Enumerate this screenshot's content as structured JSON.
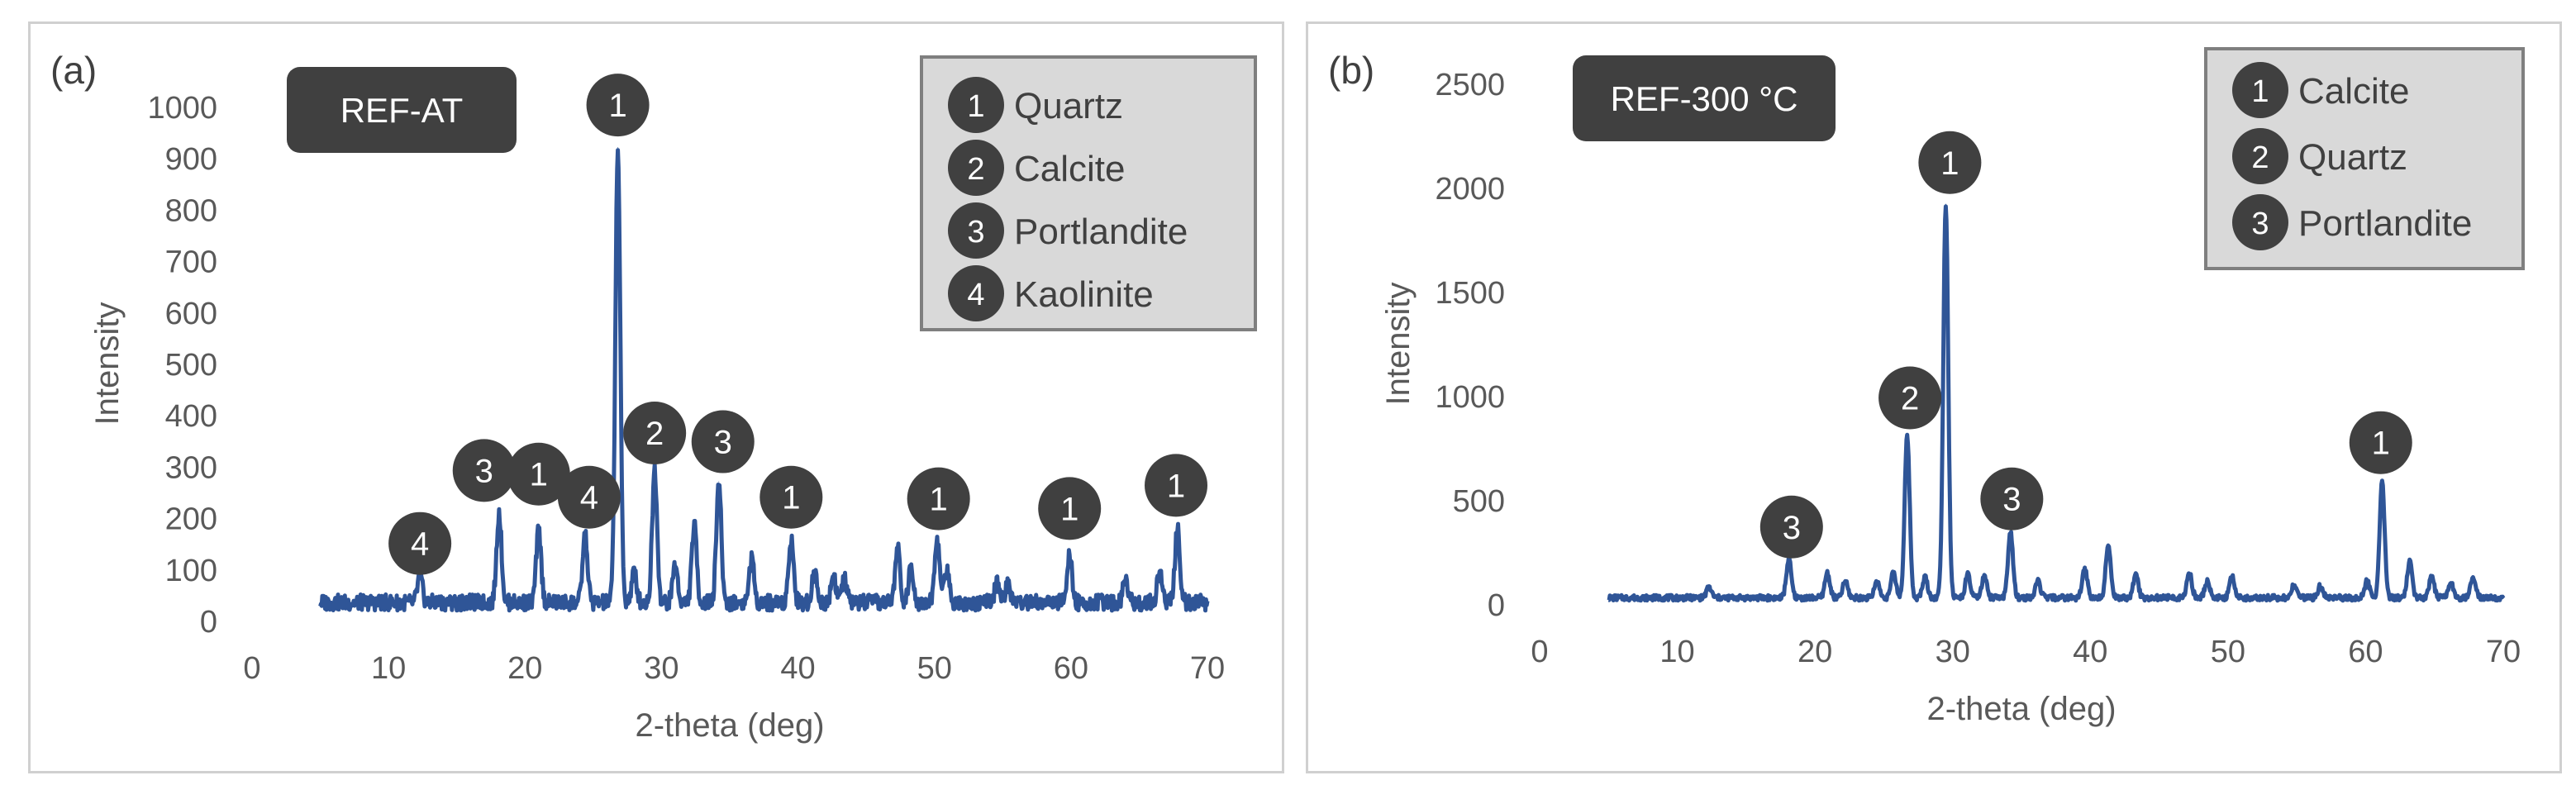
{
  "chart_data": [
    {
      "type": "line",
      "panel_label": "(a)",
      "sample_label": "REF-AT",
      "xlabel": "2-theta (deg)",
      "ylabel": "Intensity",
      "xlim": [
        0,
        70
      ],
      "ylim": [
        0,
        1000
      ],
      "xticks": [
        0,
        10,
        20,
        30,
        40,
        50,
        60,
        70
      ],
      "yticks": [
        0,
        100,
        200,
        300,
        400,
        500,
        600,
        700,
        800,
        900,
        1000
      ],
      "grid": false,
      "legend_position": "top-right",
      "line_color": "#2f5597",
      "baseline": 35,
      "x_start": 5,
      "x_end": 70,
      "peaks": [
        {
          "x": 12.3,
          "y": 85
        },
        {
          "x": 18.1,
          "y": 210
        },
        {
          "x": 21.0,
          "y": 175
        },
        {
          "x": 24.4,
          "y": 165
        },
        {
          "x": 26.8,
          "y": 920
        },
        {
          "x": 28.0,
          "y": 95
        },
        {
          "x": 29.5,
          "y": 295
        },
        {
          "x": 31.0,
          "y": 110
        },
        {
          "x": 32.4,
          "y": 185
        },
        {
          "x": 34.2,
          "y": 270
        },
        {
          "x": 36.6,
          "y": 120
        },
        {
          "x": 39.5,
          "y": 160
        },
        {
          "x": 41.2,
          "y": 95
        },
        {
          "x": 42.6,
          "y": 90
        },
        {
          "x": 43.4,
          "y": 80
        },
        {
          "x": 47.3,
          "y": 140
        },
        {
          "x": 48.3,
          "y": 105
        },
        {
          "x": 50.2,
          "y": 155
        },
        {
          "x": 50.9,
          "y": 100
        },
        {
          "x": 54.6,
          "y": 75
        },
        {
          "x": 55.4,
          "y": 70
        },
        {
          "x": 59.9,
          "y": 125
        },
        {
          "x": 64.0,
          "y": 85
        },
        {
          "x": 66.5,
          "y": 100
        },
        {
          "x": 67.8,
          "y": 180
        }
      ],
      "peak_labels": [
        {
          "num": "4",
          "x": 12.3,
          "y": 150
        },
        {
          "num": "3",
          "x": 17.0,
          "y": 292
        },
        {
          "num": "1",
          "x": 21.0,
          "y": 285
        },
        {
          "num": "4",
          "x": 24.7,
          "y": 240
        },
        {
          "num": "1",
          "x": 26.8,
          "y": 1003
        },
        {
          "num": "2",
          "x": 29.5,
          "y": 365
        },
        {
          "num": "3",
          "x": 34.5,
          "y": 348
        },
        {
          "num": "1",
          "x": 39.5,
          "y": 240
        },
        {
          "num": "1",
          "x": 50.3,
          "y": 237
        },
        {
          "num": "1",
          "x": 59.9,
          "y": 218
        },
        {
          "num": "1",
          "x": 67.7,
          "y": 263
        }
      ],
      "legend": [
        {
          "num": "1",
          "label": "Quartz"
        },
        {
          "num": "2",
          "label": "Calcite"
        },
        {
          "num": "3",
          "label": "Portlandite"
        },
        {
          "num": "4",
          "label": "Kaolinite"
        }
      ]
    },
    {
      "type": "line",
      "panel_label": "(b)",
      "sample_label": "REF-300 °C",
      "xlabel": "2-theta (deg)",
      "ylabel": "Intensity",
      "xlim": [
        0,
        70
      ],
      "ylim": [
        0,
        2500
      ],
      "xticks": [
        0,
        10,
        20,
        30,
        40,
        50,
        60,
        70
      ],
      "yticks": [
        0,
        500,
        1000,
        1500,
        2000,
        2500
      ],
      "grid": false,
      "legend_position": "top-right",
      "line_color": "#2f5597",
      "baseline": 30,
      "x_start": 5,
      "x_end": 70,
      "peaks": [
        {
          "x": 12.3,
          "y": 80
        },
        {
          "x": 18.1,
          "y": 215
        },
        {
          "x": 20.9,
          "y": 150
        },
        {
          "x": 22.2,
          "y": 110
        },
        {
          "x": 24.5,
          "y": 110
        },
        {
          "x": 25.7,
          "y": 150
        },
        {
          "x": 26.7,
          "y": 810
        },
        {
          "x": 28.0,
          "y": 130
        },
        {
          "x": 29.5,
          "y": 1920
        },
        {
          "x": 31.1,
          "y": 140
        },
        {
          "x": 32.3,
          "y": 130
        },
        {
          "x": 34.2,
          "y": 345
        },
        {
          "x": 36.2,
          "y": 110
        },
        {
          "x": 39.6,
          "y": 170
        },
        {
          "x": 41.3,
          "y": 290
        },
        {
          "x": 43.3,
          "y": 140
        },
        {
          "x": 47.2,
          "y": 150
        },
        {
          "x": 48.5,
          "y": 110
        },
        {
          "x": 50.3,
          "y": 130
        },
        {
          "x": 54.8,
          "y": 90
        },
        {
          "x": 56.7,
          "y": 85
        },
        {
          "x": 60.1,
          "y": 110
        },
        {
          "x": 61.2,
          "y": 590
        },
        {
          "x": 63.2,
          "y": 200
        },
        {
          "x": 64.8,
          "y": 130
        },
        {
          "x": 66.2,
          "y": 100
        },
        {
          "x": 67.8,
          "y": 120
        }
      ],
      "peak_labels": [
        {
          "num": "3",
          "x": 18.3,
          "y": 370
        },
        {
          "num": "2",
          "x": 26.9,
          "y": 990
        },
        {
          "num": "1",
          "x": 29.8,
          "y": 2120
        },
        {
          "num": "3",
          "x": 34.3,
          "y": 505
        },
        {
          "num": "1",
          "x": 61.1,
          "y": 775
        }
      ],
      "legend": [
        {
          "num": "1",
          "label": "Calcite"
        },
        {
          "num": "2",
          "label": "Quartz"
        },
        {
          "num": "3",
          "label": "Portlandite"
        }
      ]
    }
  ]
}
